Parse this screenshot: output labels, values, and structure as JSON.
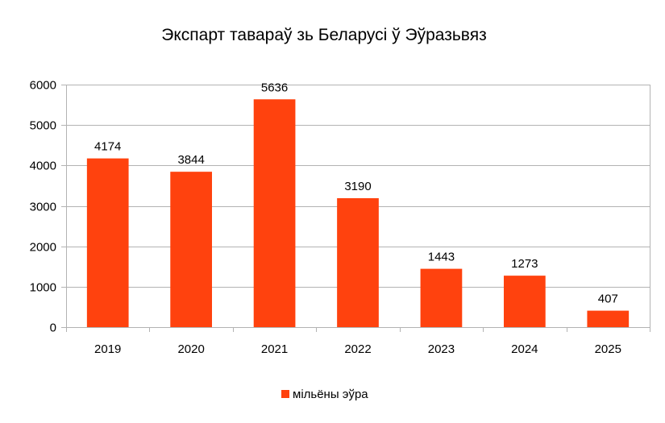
{
  "chart_data": {
    "type": "bar",
    "title": "Экспарт тавараў зь Беларусі ў Эўразьвяз",
    "categories": [
      "2019",
      "2020",
      "2021",
      "2022",
      "2023",
      "2024",
      "2025"
    ],
    "series": [
      {
        "name": "мільёны эўра",
        "values": [
          4174,
          3844,
          5636,
          3190,
          1443,
          1273,
          407
        ],
        "color": "#ff420e"
      }
    ],
    "ylim": [
      0,
      6000
    ],
    "yticks": [
      0,
      1000,
      2000,
      3000,
      4000,
      5000,
      6000
    ],
    "xlabel": "",
    "ylabel": "",
    "grid": true,
    "data_labels": true,
    "legend_position": "bottom"
  }
}
